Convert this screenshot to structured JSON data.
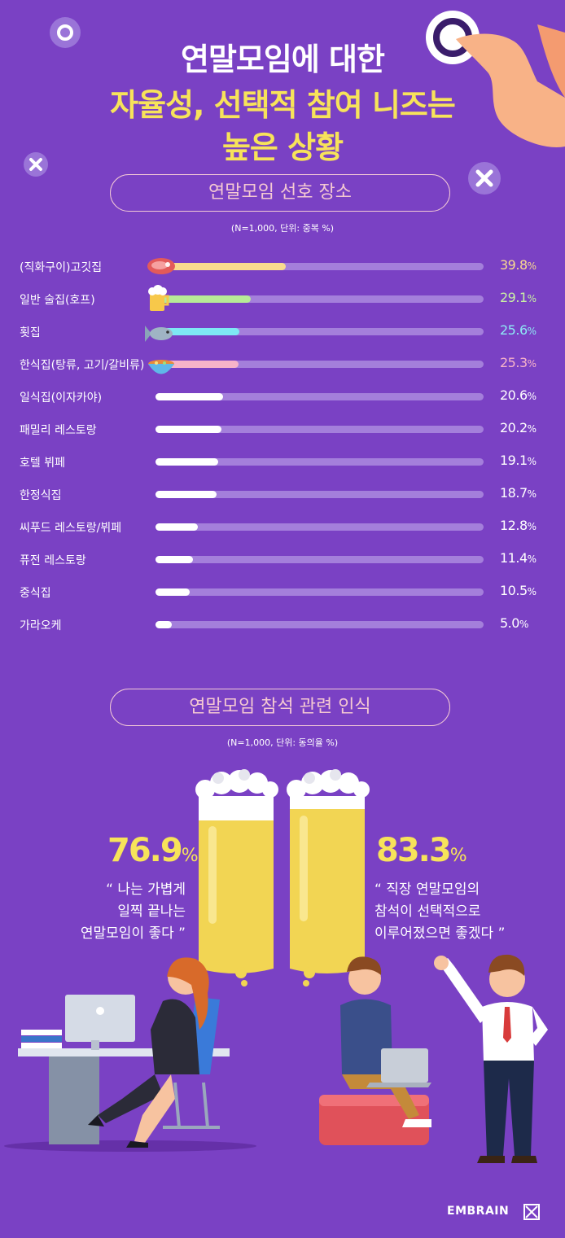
{
  "title": {
    "line1": "연말모임에 대한",
    "line2": "자율성, 선택적 참여 니즈는",
    "line3": "높은 상황"
  },
  "icons": [
    "circle-decoration-icon",
    "x-decoration-icon",
    "pointing-hand-icon",
    "steak-icon",
    "beer-icon",
    "fish-icon",
    "soup-bowl-icon",
    "beer-glass-icon",
    "logo-icon"
  ],
  "colors": {
    "background": "#7a41c4",
    "track": "#a47fdb",
    "accent_yellow": "#f7e35a",
    "pill_text": "#f5c9d2"
  },
  "section1": {
    "title": "연말모임 선호 장소",
    "note": "(N=1,000, 단위: 중복 %)"
  },
  "chart_data": {
    "type": "bar",
    "orientation": "horizontal",
    "categories": [
      "(직화구이)고깃집",
      "일반 술집(호프)",
      "횟집",
      "한식집(탕류, 고기/갈비류)",
      "일식집(이자카야)",
      "패밀리 레스토랑",
      "호텔 뷔페",
      "한정식집",
      "씨푸드 레스토랑/뷔페",
      "퓨전 레스토랑",
      "중식집",
      "가라오케"
    ],
    "values": [
      39.8,
      29.1,
      25.6,
      25.3,
      20.6,
      20.2,
      19.1,
      18.7,
      12.8,
      11.4,
      10.5,
      5.0
    ],
    "labels": [
      "39.8",
      "29.1",
      "25.6",
      "25.3",
      "20.6",
      "20.2",
      "19.1",
      "18.7",
      "12.8",
      "11.4",
      "10.5",
      "5.0"
    ],
    "unit": "%",
    "xlim": [
      0,
      100
    ],
    "bar_colors": [
      "#f9db8e",
      "#b7ea97",
      "#7ee8f4",
      "#f7b3c9",
      "#ffffff",
      "#ffffff",
      "#ffffff",
      "#ffffff",
      "#ffffff",
      "#ffffff",
      "#ffffff",
      "#ffffff"
    ],
    "value_colors": [
      "#f9db8e",
      "#c9f0a5",
      "#8ee9f5",
      "#f7b3c9",
      "#ffffff",
      "#ffffff",
      "#ffffff",
      "#ffffff",
      "#ffffff",
      "#ffffff",
      "#ffffff",
      "#ffffff"
    ]
  },
  "section2": {
    "title": "연말모임 참석 관련 인식",
    "note": "(N=1,000, 단위: 동의율 %)",
    "stat_left": {
      "value": "76.9",
      "unit": "%",
      "lines": [
        "“ 나는 가볍게",
        "일찍 끝나는",
        "연말모임이 좋다 ”"
      ]
    },
    "stat_right": {
      "value": "83.3",
      "unit": "%",
      "lines": [
        "“ 직장 연말모임의",
        "참석이 선택적으로",
        "이루어졌으면 좋겠다 ”"
      ]
    }
  },
  "brand": "EMBRAIN"
}
